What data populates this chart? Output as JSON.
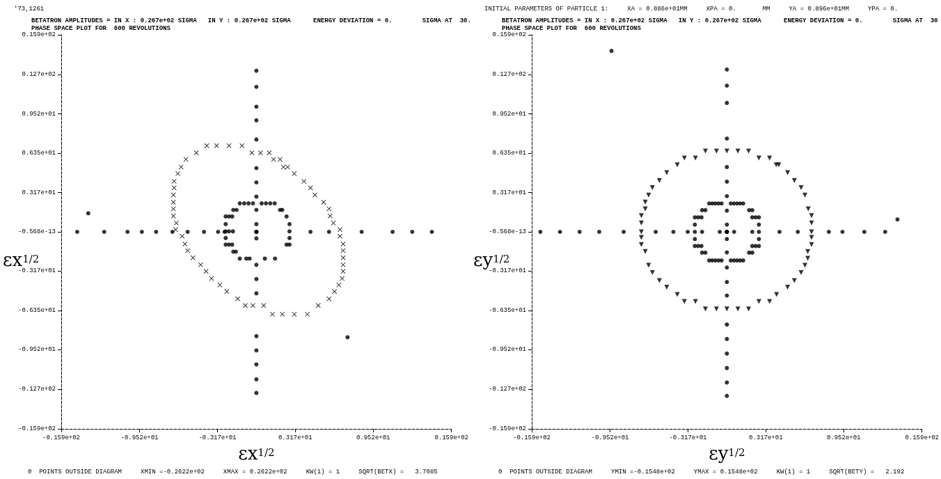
{
  "chart_data": [
    {
      "type": "scatter",
      "title": "BETATRON AMPLITUDES = IN X : 0.267e+02 SIGMA   IN Y : 0.267e+02 SIGMA      ENERGY DEVIATION = 0.        SIGMA AT  30.",
      "subtitle": "PHASE SPACE PLOT FOR  600 REVOLUTIONS",
      "xlabel": "εx$^{1/2}$",
      "ylabel": "εx$^{1/2}$",
      "annotations": [
        "'73,1261",
        "0  POINTS OUTSIDE DIAGRAM     XMIN =-0.2622e+02     XMAX = 0.2622e+02     KW(1) = 1     SQRT(BETX) =   3.7085"
      ],
      "xlim": [
        -15.9,
        15.9
      ],
      "ylim": [
        -15.9,
        15.9
      ],
      "xticks": [
        {
          "value": -15.9,
          "label": "-0.159e+02"
        },
        {
          "value": -9.52,
          "label": "-0.952e+01"
        },
        {
          "value": -3.17,
          "label": "-0.317e+01"
        },
        {
          "value": 3.17,
          "label": "0.317e+01"
        },
        {
          "value": 9.52,
          "label": "0.952e+01"
        },
        {
          "value": 15.9,
          "label": "0.159e+02"
        }
      ],
      "yticks": [
        {
          "value": 15.9,
          "label": "0.159e+02"
        },
        {
          "value": 12.7,
          "label": "0.127e+02"
        },
        {
          "value": 9.52,
          "label": "0.952e+01"
        },
        {
          "value": 6.35,
          "label": "0.635e+01"
        },
        {
          "value": 3.17,
          "label": "0.317e+01"
        },
        {
          "value": 0,
          "label": "-0.568e-13"
        },
        {
          "value": -3.17,
          "label": "-0.317e+01"
        },
        {
          "value": -6.35,
          "label": "-0.635e+01"
        },
        {
          "value": -9.52,
          "label": "-0.952e+01"
        },
        {
          "value": -12.7,
          "label": "-0.127e+02"
        },
        {
          "value": -15.9,
          "label": "-0.159e+02"
        }
      ],
      "grid": false,
      "series": [
        {
          "color": "#000000",
          "marker": "cross",
          "x": [
            -4.04,
            -3.24,
            -2.23,
            -1.17,
            -4.89,
            -0.37,
            0.34,
            1.05,
            -5.74,
            1.4,
            1.93,
            -6.13,
            2.2,
            2.55,
            -6.4,
            3.09,
            -6.7,
            3.88,
            -6.7,
            4.41,
            -6.76,
            4.77,
            -6.76,
            5.48,
            -6.76,
            5.92,
            -6.76,
            6.01,
            -6.52,
            6.28,
            -6.58,
            6.81,
            -6.05,
            6.81,
            -5.82,
            7.07,
            -5.6,
            7.07,
            -5.16,
            7.07,
            -4.54,
            7.07,
            -4.1,
            7.07,
            -3.65,
            6.99,
            -2.98,
            6.72,
            -2.41,
            6.37,
            -1.52,
            5.92,
            -0.9,
            -0.28,
            0.6,
            5.04,
            1.31,
            2.11,
            3.09,
            4.15
          ],
          "values": [
            6.95,
            6.95,
            6.95,
            6.95,
            6.38,
            6.38,
            6.38,
            6.38,
            5.85,
            5.85,
            5.85,
            5.23,
            5.23,
            5.23,
            4.7,
            4.7,
            4.08,
            4.08,
            3.55,
            3.55,
            2.98,
            2.98,
            2.39,
            2.39,
            1.86,
            1.86,
            1.28,
            1.28,
            0.71,
            0.71,
            0.18,
            0.18,
            -0.35,
            -0.35,
            -0.98,
            -0.98,
            -1.51,
            -1.51,
            -2.09,
            -2.09,
            -2.66,
            -2.66,
            -3.19,
            -3.19,
            -3.76,
            -3.76,
            -4.29,
            -4.29,
            -4.82,
            -4.82,
            -5.41,
            -5.41,
            -5.94,
            -5.94,
            -5.94,
            -5.94,
            -6.65,
            -6.65,
            -6.65,
            -6.65
          ]
        },
        {
          "color": "#000000",
          "marker": "circle",
          "x": [
            -1.35,
            -0.99,
            -0.64,
            -0.28,
            0.43,
            0.78,
            1.13,
            1.49,
            -1.88,
            -1.61,
            1.93,
            2.11,
            -2.5,
            -2.23,
            -1.97,
            2.46,
            -2.5,
            2.7,
            -2.5,
            -2.23,
            -1.91,
            2.7,
            -2.5,
            2.7,
            -2.5,
            -2.23,
            -1.97,
            2.46,
            2.7,
            -1.88,
            -1.67,
            -1.35,
            -0.82,
            -0.55,
            0.69,
            1.52
          ],
          "values": [
            2.3,
            2.3,
            2.3,
            2.3,
            2.3,
            2.3,
            2.3,
            2.3,
            1.77,
            1.77,
            1.77,
            1.77,
            1.24,
            1.24,
            1.24,
            1.24,
            0.62,
            0.62,
            0.04,
            0.04,
            0.04,
            0.04,
            -0.5,
            -0.5,
            -1.03,
            -1.03,
            -1.03,
            -1.03,
            -1.03,
            -1.6,
            -1.6,
            -2.16,
            -2.16,
            -2.16,
            -2.16,
            -2.16
          ]
        },
        {
          "color": "#000000",
          "marker": "circle",
          "x": [
            -14.6,
            -12.4,
            -10.5,
            -9.33,
            -8.17,
            -6.84,
            -5.6,
            -4.27,
            -3.12,
            -2.59,
            4.41,
            5.92,
            8.58,
            11.1,
            12.7,
            14.3,
            0,
            0,
            0,
            0,
            0,
            0,
            0,
            0,
            0,
            0,
            0,
            0,
            0,
            0,
            0,
            0,
            0,
            0,
            0,
            0,
            0,
            0,
            7.43,
            -13.7
          ],
          "values": [
            0,
            0,
            0,
            0,
            0,
            0,
            0,
            0,
            0,
            0,
            0,
            0,
            0,
            0,
            0,
            0,
            13.0,
            11.7,
            10.1,
            9.0,
            7.45,
            5.14,
            3.99,
            2.84,
            1.77,
            0.62,
            -0.53,
            -2.66,
            -3.81,
            -4.96,
            -8.42,
            -9.57,
            -10.7,
            -11.9,
            -13.0,
            0,
            0,
            0,
            -8.51,
            1.5
          ]
        }
      ]
    },
    {
      "type": "scatter",
      "title": "BETATRON AMPLITUDES = IN X : 0.267e+02 SIGMA   IN Y : 0.267e+02 SIGMA      ENERGY DEVIATION = 0.        SIGMA AT  30",
      "subtitle": "PHASE SPACE PLOT FOR  600 REVOLUTIONS",
      "xlabel": "εy$^{1/2}$",
      "ylabel": "εy$^{1/2}$",
      "annotations": [
        "INITIAL PARAMETERS OF PARTICLE 1:     XA = 0.886e+01MM     XPA = 0.       MM     YA = 0.896e+01MM     YPA = 0.",
        "0  POINTS OUTSIDE DIAGRAM     YMIN =-0.1548e+02     YMAX = 0.1548e+02     KW(1) = 1     SQRT(BETY) =   2.192"
      ],
      "xlim": [
        -15.9,
        15.9
      ],
      "ylim": [
        -15.9,
        15.9
      ],
      "xticks": [
        {
          "value": -15.9,
          "label": "-0.159e+02"
        },
        {
          "value": -9.52,
          "label": "-0.952e+01"
        },
        {
          "value": -3.17,
          "label": "-0.317e+01"
        },
        {
          "value": 3.17,
          "label": "0.317e+01"
        },
        {
          "value": 9.52,
          "label": "0.952e+01"
        },
        {
          "value": 15.9,
          "label": "0.159e+02"
        }
      ],
      "yticks": [
        {
          "value": 15.9,
          "label": "0.159e+02"
        },
        {
          "value": 12.7,
          "label": "0.127e+02"
        },
        {
          "value": 9.52,
          "label": "0.952e+01"
        },
        {
          "value": 6.35,
          "label": "0.635e+01"
        },
        {
          "value": 3.17,
          "label": "0.317e+01"
        },
        {
          "value": 0,
          "label": "-0.568e-13"
        },
        {
          "value": -3.17,
          "label": "-0.317e+01"
        },
        {
          "value": -6.35,
          "label": "-0.635e+01"
        },
        {
          "value": -9.52,
          "label": "-0.952e+01"
        },
        {
          "value": -12.7,
          "label": "-0.127e+02"
        },
        {
          "value": -15.9,
          "label": "-0.159e+02"
        }
      ],
      "grid": false,
      "series": [
        {
          "color": "#000000",
          "marker": "triangle",
          "x": [
            -1.75,
            -0.85,
            0,
            0.9,
            1.77,
            -3.46,
            -2.56,
            2.61,
            3.48,
            -4.04,
            4.02,
            4.23,
            -4.9,
            4.95,
            -5.5,
            5.5,
            -6.07,
            6.05,
            -6.38,
            6.36,
            -6.65,
            -6.65,
            6.63,
            -6.97,
            6.9,
            -6.97,
            6.9,
            -6.97,
            6.9,
            -6.97,
            6.9,
            -6.97,
            6.9,
            -6.65,
            6.59,
            6.59,
            -6.38,
            6.36,
            -6.07,
            6.05,
            -5.5,
            5.5,
            -4.9,
            4.95,
            -4.04,
            4.05,
            -3.46,
            -2.56,
            2.61,
            3.48,
            -1.75,
            -0.85,
            0,
            0.9,
            1.77
          ],
          "values": [
            6.52,
            6.52,
            6.52,
            6.52,
            6.52,
            5.95,
            5.95,
            5.95,
            5.95,
            5.41,
            5.41,
            5.41,
            4.77,
            4.77,
            4.14,
            4.14,
            3.57,
            3.57,
            2.97,
            2.97,
            2.4,
            1.86,
            1.86,
            1.3,
            1.3,
            0.72,
            0.72,
            0,
            0,
            -0.45,
            -0.45,
            -1.03,
            -1.03,
            -1.59,
            -1.59,
            -2.13,
            -2.7,
            -2.7,
            -3.28,
            -3.28,
            -3.93,
            -3.93,
            -4.47,
            -4.47,
            -5.05,
            -5.05,
            -5.62,
            -5.62,
            -5.62,
            -5.62,
            -6.22,
            -6.22,
            -6.22,
            -6.22,
            -6.22
          ]
        },
        {
          "color": "#000000",
          "marker": "circle",
          "x": [
            -1.44,
            -1.19,
            -0.94,
            -0.68,
            -0.43,
            0.32,
            0.58,
            0.83,
            1.08,
            1.33,
            -2.02,
            -1.75,
            1.81,
            2.07,
            -2.61,
            -2.34,
            -2.07,
            2.07,
            2.34,
            2.61,
            -2.61,
            2.61,
            -2.61,
            -2.02,
            2.07,
            2.61,
            -2.61,
            2.61,
            -2.61,
            -2.34,
            -2.07,
            2.07,
            2.34,
            2.61,
            -2.02,
            -1.75,
            1.81,
            2.07,
            -1.44,
            -1.19,
            -0.94,
            -0.68,
            -0.43,
            0.32,
            0.58,
            0.83,
            1.08,
            1.33
          ],
          "values": [
            2.29,
            2.29,
            2.29,
            2.29,
            2.29,
            2.29,
            2.29,
            2.29,
            2.29,
            2.29,
            1.75,
            1.75,
            1.75,
            1.75,
            1.17,
            1.17,
            1.17,
            1.17,
            1.17,
            1.17,
            0.58,
            0.58,
            0,
            0,
            0,
            0,
            -0.58,
            -0.58,
            -1.14,
            -1.14,
            -1.14,
            -1.14,
            -1.14,
            -1.14,
            -1.68,
            -1.68,
            -1.68,
            -1.68,
            -2.31,
            -2.31,
            -2.31,
            -2.31,
            -2.31,
            -2.31,
            -2.31,
            -2.31,
            -2.31,
            -2.31
          ]
        },
        {
          "color": "#000000",
          "marker": "circle",
          "x": [
            -15.2,
            -13.6,
            -12.0,
            -10.4,
            -8.41,
            -5.8,
            -4.36,
            -3.19,
            -0.58,
            0.59,
            4.29,
            5.78,
            8.31,
            9.42,
            11.2,
            12.9,
            0,
            0,
            0,
            0,
            0,
            0,
            0,
            0,
            0,
            0,
            0,
            0,
            0,
            0,
            0,
            0,
            0,
            0,
            0,
            0,
            0,
            0,
            0,
            0,
            13.9,
            -9.4
          ],
          "values": [
            0,
            0,
            0,
            0,
            0,
            0,
            0,
            0,
            0,
            0,
            0,
            0,
            0,
            0,
            0,
            0,
            13.1,
            11.8,
            10.4,
            7.53,
            5.23,
            4.05,
            2.88,
            1.71,
            0.58,
            -0.58,
            -1.66,
            -2.88,
            -4.05,
            -5.14,
            -7.48,
            -8.65,
            -9.82,
            -10.99,
            -12.16,
            -13.24,
            0,
            0,
            0,
            0,
            1.0,
            14.6
          ]
        }
      ]
    }
  ]
}
